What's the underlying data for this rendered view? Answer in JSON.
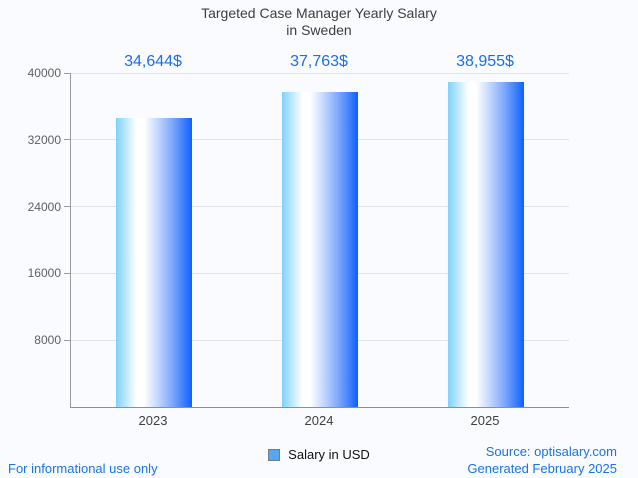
{
  "title": {
    "line1": "Targeted Case Manager Yearly Salary",
    "line2": "in Sweden"
  },
  "chart_data": {
    "type": "bar",
    "title": "Targeted Case Manager Yearly Salary in Sweden",
    "categories": [
      "2023",
      "2024",
      "2025"
    ],
    "values": [
      34644,
      37763,
      38955
    ],
    "value_labels": [
      "34,644$",
      "37,763$",
      "38,955$"
    ],
    "xlabel": "",
    "ylabel": "",
    "ylim": [
      0,
      40000
    ],
    "yticks": [
      8000,
      16000,
      24000,
      32000,
      40000
    ],
    "grid": true,
    "legend_position": "bottom",
    "series_name": "Salary in USD",
    "bar_gradient": [
      "#7fd2f9",
      "#ffffff",
      "#0e61fd"
    ]
  },
  "legend": {
    "label": "Salary in USD",
    "swatch_fill": "#58a7ee",
    "swatch_border": "#6e7b8c"
  },
  "footer": {
    "disclaimer": "For informational use only",
    "source": "Source: optisalary.com",
    "generated": "Generated February 2025"
  },
  "colors": {
    "background": "#fafbfe",
    "title_text": "#3d3d3d",
    "value_text": "#1a6ee8",
    "link_text": "#1a73e8",
    "axis_line": "#9a9a9a",
    "grid_line": "#e1e2e8",
    "tick_label": "#5f5f5f",
    "bar_light": "#7fd2f9",
    "bar_dark": "#0e61fd"
  }
}
